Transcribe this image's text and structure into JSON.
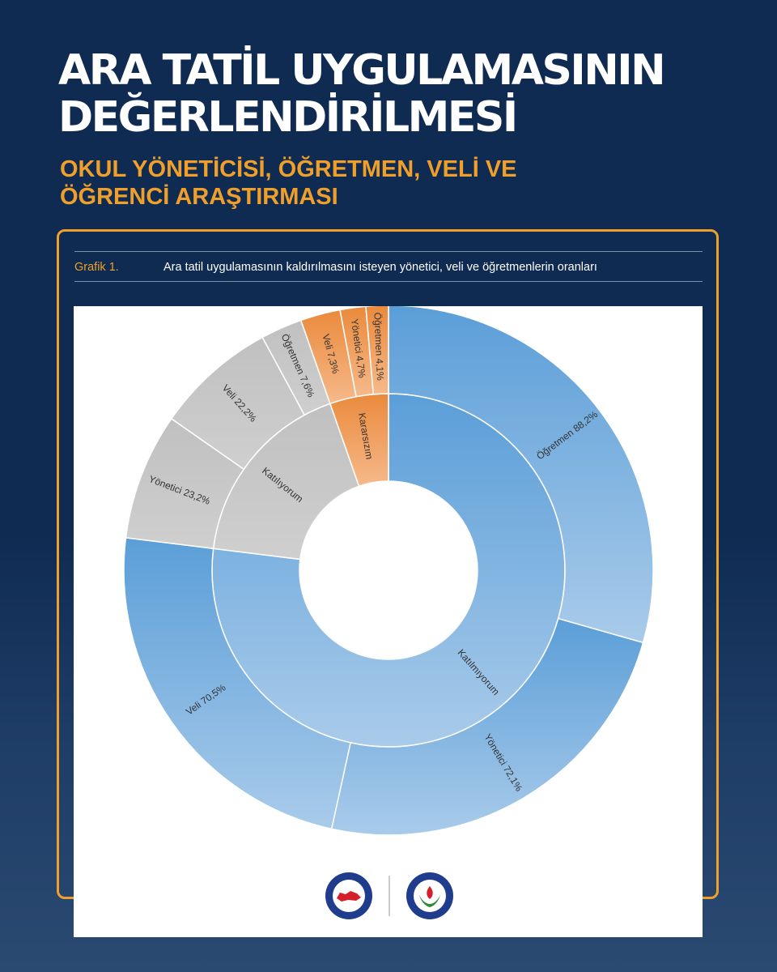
{
  "header": {
    "title_line1": "ARA TATİL UYGULAMASININ",
    "title_line2": "DEĞERLENDİRİLMESİ",
    "subtitle_line1": "OKUL YÖNETİCİSİ, ÖĞRETMEN, VELİ VE",
    "subtitle_line2": "ÖĞRENCİ ARAŞTIRMASI"
  },
  "caption": {
    "label": "Grafik 1.",
    "text": "Ara tatil uygulamasının kaldırılmasını isteyen yönetici, veli ve öğretmenlerin oranları"
  },
  "chart_data": {
    "type": "sunburst",
    "inner": [
      {
        "label": "Katılmıyorum",
        "value": 230.8
      },
      {
        "label": "Katılıyorum",
        "value": 53.0
      },
      {
        "label": "Kararsızım",
        "value": 16.1
      }
    ],
    "outer": [
      {
        "group": "Katılmıyorum",
        "label": "Öğretmen 88,2%",
        "value": 88.2
      },
      {
        "group": "Katılmıyorum",
        "label": "Yönetici 72,1%",
        "value": 72.1
      },
      {
        "group": "Katılmıyorum",
        "label": "Veli 70,5%",
        "value": 70.5
      },
      {
        "group": "Katılıyorum",
        "label": "Yönetici 23,2%",
        "value": 23.2
      },
      {
        "group": "Katılıyorum",
        "label": "Veli 22,2%",
        "value": 22.2
      },
      {
        "group": "Katılıyorum",
        "label": "Öğretmen 7,6%",
        "value": 7.6
      },
      {
        "group": "Kararsızım",
        "label": "Veli 7,3%",
        "value": 7.3
      },
      {
        "group": "Kararsızım",
        "label": "Yönetici 4,7%",
        "value": 4.7
      },
      {
        "group": "Kararsızım",
        "label": "Öğretmen 4,1%",
        "value": 4.1
      }
    ],
    "colors": {
      "Katılmıyorum": "#7db0e0",
      "Katılıyorum": "#c4c4c4",
      "Kararsızım": "#f0a264"
    }
  },
  "logos": {
    "left": "MEMUR-SEN",
    "right": "EĞİTİM-BİR-SEN"
  }
}
